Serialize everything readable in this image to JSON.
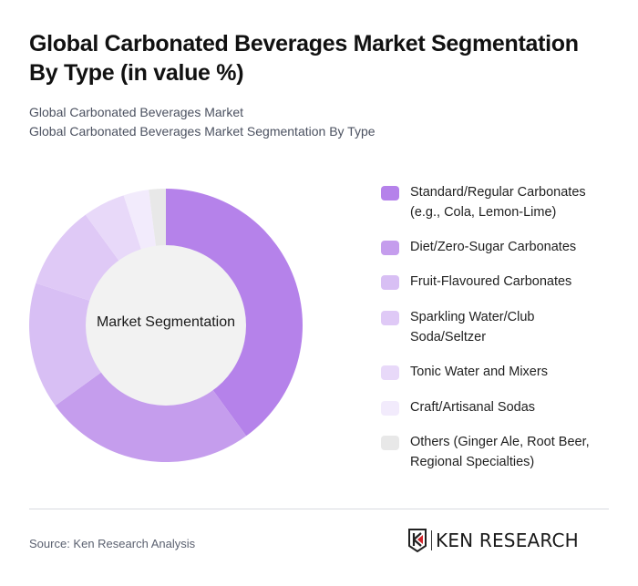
{
  "header": {
    "title": "Global Carbonated Beverages Market Segmentation By Type (in value %)",
    "subtitle_line1": "Global Carbonated Beverages Market",
    "subtitle_line2": "Global Carbonated Beverages Market Segmentation By Type"
  },
  "chart": {
    "center_label": "Market Segmentation"
  },
  "legend": {
    "items": [
      {
        "label": "Standard/Regular Carbonates (e.g., Cola, Lemon-Lime)",
        "color": "#b582ea"
      },
      {
        "label": "Diet/Zero-Sugar Carbonates",
        "color": "#c59ded"
      },
      {
        "label": "Fruit-Flavoured Carbonates",
        "color": "#d8bff4"
      },
      {
        "label": "Sparkling Water/Club Soda/Seltzer",
        "color": "#dfc9f6"
      },
      {
        "label": "Tonic Water and Mixers",
        "color": "#e8d9f9"
      },
      {
        "label": "Craft/Artisanal Sodas",
        "color": "#f2ebfc"
      },
      {
        "label": "Others (Ginger Ale, Root Beer, Regional Specialties)",
        "color": "#e8e8e8"
      }
    ]
  },
  "footer": {
    "source": "Source: Ken Research Analysis",
    "logo_text": "KEN RESEARCH"
  },
  "chart_data": {
    "type": "pie",
    "variant": "donut",
    "title": "Global Carbonated Beverages Market Segmentation By Type (in value %)",
    "subtitle": "Global Carbonated Beverages Market Segmentation By Type",
    "center_label": "Market Segmentation",
    "categories": [
      "Standard/Regular Carbonates (e.g., Cola, Lemon-Lime)",
      "Diet/Zero-Sugar Carbonates",
      "Fruit-Flavoured Carbonates",
      "Sparkling Water/Club Soda/Seltzer",
      "Tonic Water and Mixers",
      "Craft/Artisanal Sodas",
      "Others (Ginger Ale, Root Beer, Regional Specialties)"
    ],
    "values": [
      40,
      25,
      15,
      10,
      5,
      3,
      2
    ],
    "colors": [
      "#b582ea",
      "#c59ded",
      "#d8bff4",
      "#dfc9f6",
      "#e8d9f9",
      "#f2ebfc",
      "#e8e8e8"
    ],
    "legend_position": "right",
    "start_angle": "12 o'clock, clockwise"
  }
}
